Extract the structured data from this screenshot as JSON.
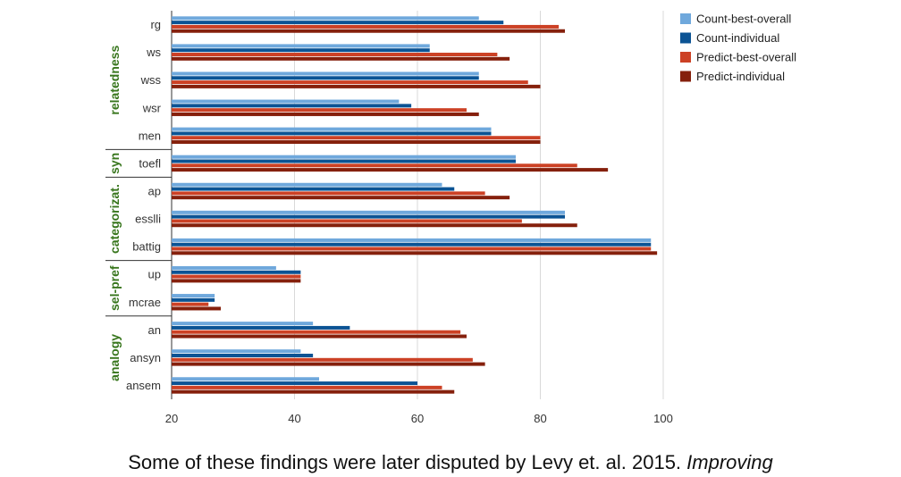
{
  "chart_data": {
    "type": "bar",
    "orientation": "horizontal",
    "categories": [
      "rg",
      "ws",
      "wss",
      "wsr",
      "men",
      "toefl",
      "ap",
      "esslli",
      "battig",
      "up",
      "mcrae",
      "an",
      "ansyn",
      "ansem"
    ],
    "groups": [
      {
        "label": "relatedness",
        "categories": [
          "rg",
          "ws",
          "wss",
          "wsr",
          "men"
        ]
      },
      {
        "label": "syn",
        "categories": [
          "toefl"
        ]
      },
      {
        "label": "categorizat.",
        "categories": [
          "ap",
          "esslli",
          "battig"
        ]
      },
      {
        "label": "sel-pref",
        "categories": [
          "up",
          "mcrae"
        ]
      },
      {
        "label": "analogy",
        "categories": [
          "an",
          "ansyn",
          "ansem"
        ]
      }
    ],
    "series": [
      {
        "name": "Count-best-overall",
        "color": "#6fa8dc",
        "values": [
          70,
          62,
          70,
          57,
          72,
          76,
          64,
          84,
          98,
          37,
          27,
          43,
          41,
          44
        ]
      },
      {
        "name": "Count-individual",
        "color": "#0b5394",
        "values": [
          74,
          62,
          70,
          59,
          72,
          76,
          66,
          84,
          98,
          41,
          27,
          49,
          43,
          60
        ]
      },
      {
        "name": "Predict-best-overall",
        "color": "#cc4125",
        "values": [
          83,
          73,
          78,
          68,
          80,
          86,
          71,
          77,
          98,
          41,
          26,
          67,
          69,
          64
        ]
      },
      {
        "name": "Predict-individual",
        "color": "#85200c",
        "values": [
          84,
          75,
          80,
          70,
          80,
          91,
          75,
          86,
          99,
          41,
          28,
          68,
          71,
          66
        ]
      }
    ],
    "xlim": [
      20,
      100
    ],
    "xticks": [
      "20",
      "40",
      "60",
      "80",
      "100"
    ],
    "grid": true,
    "legend": "top-right"
  },
  "caption": {
    "text": "Some of these findings were later disputed by Levy et. al. 2015. ",
    "italic": "Improving"
  }
}
